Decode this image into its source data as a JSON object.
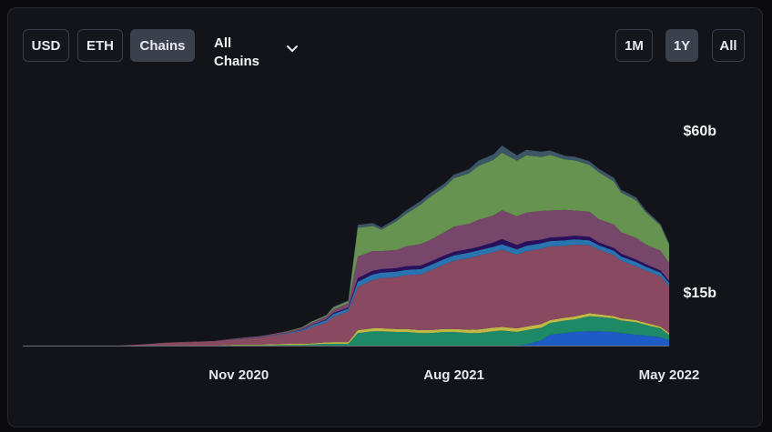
{
  "controls": {
    "currency": [
      {
        "label": "USD",
        "active": false
      },
      {
        "label": "ETH",
        "active": false
      },
      {
        "label": "Chains",
        "active": true
      }
    ],
    "chain_select": {
      "value": "All Chains"
    },
    "range": [
      {
        "label": "1M",
        "active": false
      },
      {
        "label": "1Y",
        "active": true
      },
      {
        "label": "All",
        "active": false
      }
    ]
  },
  "chart_data": {
    "type": "area",
    "stacked": true,
    "title": "",
    "xlabel": "",
    "ylabel": "",
    "x_ticks": [
      "Nov 2020",
      "Aug 2021",
      "May 2022"
    ],
    "y_ticks": [
      "$15b",
      "$60b"
    ],
    "y_tick_values": [
      15,
      60
    ],
    "y_unit": "$b",
    "y_axis_side": "right",
    "grid": false,
    "x": [
      "2020-02",
      "2020-04",
      "2020-06",
      "2020-07",
      "2020-08",
      "2020-09",
      "2020-10",
      "2020-11",
      "2020-12",
      "2021-01",
      "2021-01-20",
      "2021-02",
      "2021-02-20",
      "2021-03",
      "2021-03-20",
      "2021-04",
      "2021-04-20",
      "2021-05",
      "2021-05-20",
      "2021-06",
      "2021-06-20",
      "2021-07",
      "2021-07-20",
      "2021-08",
      "2021-08-20",
      "2021-09",
      "2021-09-20",
      "2021-10",
      "2021-10-20",
      "2021-11",
      "2021-11-20",
      "2021-12",
      "2021-12-20",
      "2022-01",
      "2022-01-20",
      "2022-02",
      "2022-02-20",
      "2022-03",
      "2022-03-20",
      "2022-04",
      "2022-04-20",
      "2022-05"
    ],
    "series": [
      {
        "color": "#1f5fd1",
        "values": [
          0,
          0,
          0,
          0,
          0,
          0,
          0,
          0,
          0,
          0,
          0,
          0,
          0,
          0,
          0,
          0,
          0,
          0,
          0,
          0,
          0,
          0,
          0,
          0,
          0,
          0,
          0,
          0,
          0,
          0.3,
          1.5,
          3,
          3.5,
          3.8,
          4,
          4,
          3.8,
          3.5,
          3,
          2.8,
          2.3,
          1.5
        ]
      },
      {
        "color": "#1f8f6a",
        "values": [
          0,
          0,
          0,
          0,
          0,
          0,
          0,
          0.1,
          0.1,
          0.2,
          0.2,
          0.3,
          0.5,
          0.5,
          0.5,
          3.5,
          4,
          4,
          3.8,
          3.8,
          3.5,
          3.5,
          3.8,
          3.8,
          3.5,
          3.5,
          4,
          4.2,
          3.8,
          4,
          3.5,
          3.3,
          3.5,
          3.5,
          4.2,
          4,
          3.8,
          3.5,
          3.5,
          3,
          2.5,
          1.5
        ]
      },
      {
        "color": "#c9c24a",
        "values": [
          0,
          0,
          0,
          0,
          0,
          0,
          0,
          0.2,
          0.2,
          0.3,
          0.3,
          0.3,
          0.4,
          0.5,
          0.5,
          0.8,
          0.8,
          0.8,
          0.8,
          0.8,
          0.8,
          0.8,
          0.8,
          0.8,
          0.9,
          1,
          1,
          1,
          1,
          1,
          1,
          0.8,
          0.8,
          0.8,
          0.8,
          0.7,
          0.6,
          0.6,
          0.6,
          0.6,
          0.5,
          0.5
        ]
      },
      {
        "color": "#8f4c64",
        "values": [
          0,
          0,
          0,
          0.3,
          0.8,
          1,
          1.2,
          1.5,
          2,
          2.8,
          3.5,
          4.5,
          5.5,
          7,
          8.5,
          12,
          13.5,
          14,
          14.5,
          15,
          15.5,
          16.5,
          18,
          19,
          20,
          20.5,
          21,
          21.5,
          20.5,
          21,
          21,
          20.5,
          20,
          20,
          19,
          18,
          17,
          16,
          15,
          14.5,
          14,
          13
        ]
      },
      {
        "color": "#2a78b8",
        "values": [
          0,
          0,
          0,
          0,
          0,
          0,
          0,
          0.1,
          0.1,
          0.2,
          0.3,
          0.5,
          0.7,
          0.8,
          0.8,
          1.5,
          1.5,
          1.5,
          1.5,
          1.5,
          1.5,
          1.5,
          1.5,
          1.5,
          1.5,
          1.5,
          1.5,
          1.5,
          1.5,
          1.5,
          1.5,
          1.5,
          1.5,
          1.5,
          1.3,
          1.2,
          1.2,
          1.2,
          1.2,
          1.1,
          1,
          1
        ]
      },
      {
        "color": "#2a1060",
        "values": [
          0,
          0,
          0,
          0,
          0,
          0,
          0,
          0,
          0,
          0,
          0.1,
          0.1,
          0.2,
          0.3,
          0.3,
          1,
          1,
          1,
          1,
          1,
          1,
          1,
          1,
          1,
          1,
          1,
          1.2,
          1.5,
          1.2,
          1.2,
          1,
          1,
          1,
          1,
          1,
          0.8,
          0.8,
          0.8,
          0.7,
          0.7,
          0.6,
          0.5
        ]
      },
      {
        "color": "#7b4a70",
        "values": [
          0,
          0,
          0,
          0,
          0,
          0.1,
          0.1,
          0.2,
          0.3,
          0.4,
          0.5,
          0.6,
          0.8,
          1,
          1.2,
          6,
          5.5,
          5,
          5,
          5.5,
          6,
          6,
          6.5,
          7,
          7,
          7.5,
          7.5,
          8,
          8,
          8,
          8,
          7.5,
          7.5,
          7,
          7,
          6.5,
          6.5,
          6,
          6,
          5.5,
          5.5,
          5
        ]
      },
      {
        "color": "#6a9a52",
        "values": [
          0,
          0,
          0,
          0,
          0,
          0,
          0,
          0,
          0,
          0.1,
          0.2,
          0.3,
          0.3,
          0.5,
          0.6,
          8,
          7,
          6,
          8,
          9,
          11,
          12,
          12.5,
          13.5,
          14,
          15,
          15.5,
          16,
          15.5,
          16,
          15,
          15.5,
          14,
          14,
          13,
          13,
          12,
          11,
          10.5,
          9,
          7,
          5
        ]
      },
      {
        "color": "#3d5a6b",
        "values": [
          0,
          0,
          0,
          0,
          0,
          0,
          0,
          0,
          0,
          0,
          0,
          0.1,
          0.1,
          0.2,
          0.2,
          0.8,
          0.8,
          0.6,
          0.8,
          1,
          1,
          1,
          1,
          1,
          1.2,
          1.5,
          1.5,
          2,
          1.5,
          1.5,
          1.5,
          1.2,
          1,
          1,
          1,
          1,
          1,
          0.8,
          0.8,
          0.6,
          0.5,
          0.5
        ]
      }
    ]
  }
}
